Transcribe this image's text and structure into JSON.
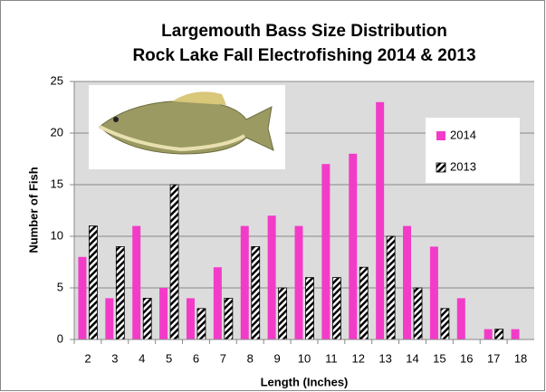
{
  "chart_data": {
    "type": "bar",
    "title": "Largemouth Bass Size Distribution",
    "subtitle": "Rock Lake Fall Electrofishing 2014 & 2013",
    "x_label": "Length (Inches)",
    "y_label": "Number of Fish",
    "categories": [
      "2",
      "3",
      "4",
      "5",
      "6",
      "7",
      "8",
      "9",
      "10",
      "11",
      "12",
      "13",
      "14",
      "15",
      "16",
      "17",
      "18"
    ],
    "series": [
      {
        "name": "2014",
        "color": "#f23cc8",
        "pattern": "solid",
        "values": [
          8,
          4,
          11,
          5,
          4,
          7,
          11,
          12,
          11,
          17,
          18,
          23,
          11,
          9,
          4,
          1,
          1
        ]
      },
      {
        "name": "2013",
        "color": "#000000",
        "pattern": "hatch",
        "values": [
          11,
          9,
          4,
          15,
          3,
          4,
          9,
          5,
          6,
          6,
          7,
          10,
          5,
          3,
          0,
          1,
          0
        ]
      }
    ],
    "ylim": [
      0,
      25
    ],
    "yticks": [
      0,
      5,
      10,
      15,
      20,
      25
    ],
    "grid": true,
    "legend": "upper right"
  }
}
